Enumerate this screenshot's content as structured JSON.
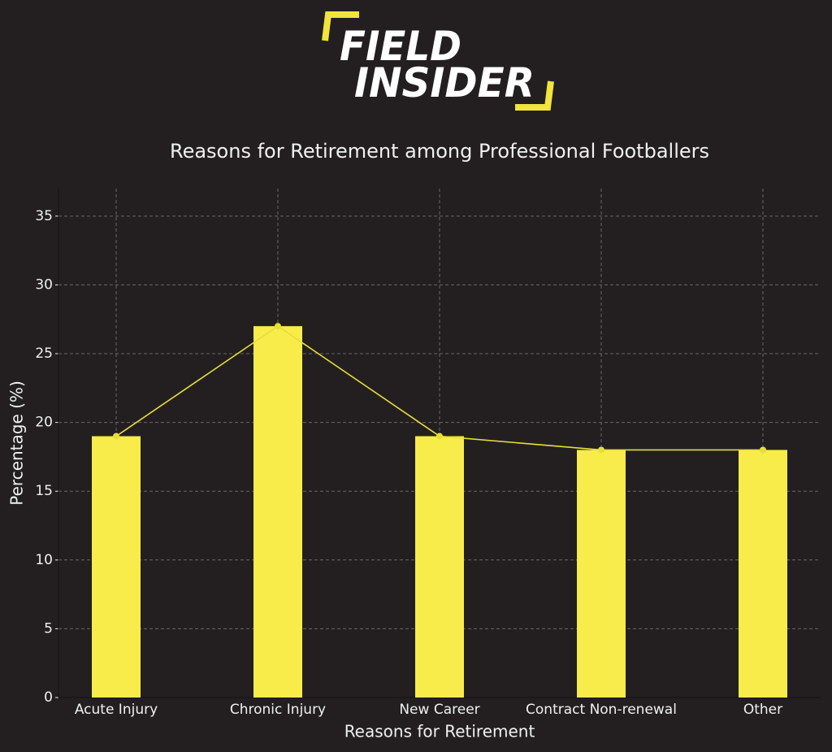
{
  "logo": [
    "FIELD",
    "INSIDER"
  ],
  "chart_data": {
    "type": "bar",
    "title": "Reasons for Retirement among Professional Footballers",
    "x_label": "Reasons for Retirement",
    "y_label": "Percentage (%)",
    "categories": [
      "Acute Injury",
      "Chronic Injury",
      "New Career",
      "Contract Non-renewal",
      "Other"
    ],
    "values": [
      19,
      27,
      19,
      18,
      18
    ],
    "color": "#f7ec4a",
    "line_overlay": true,
    "line_color": "#e8de3a",
    "ylim": [
      0,
      37
    ],
    "yticks": [
      0,
      5,
      10,
      15,
      20,
      25,
      30,
      35
    ],
    "grid": true
  }
}
